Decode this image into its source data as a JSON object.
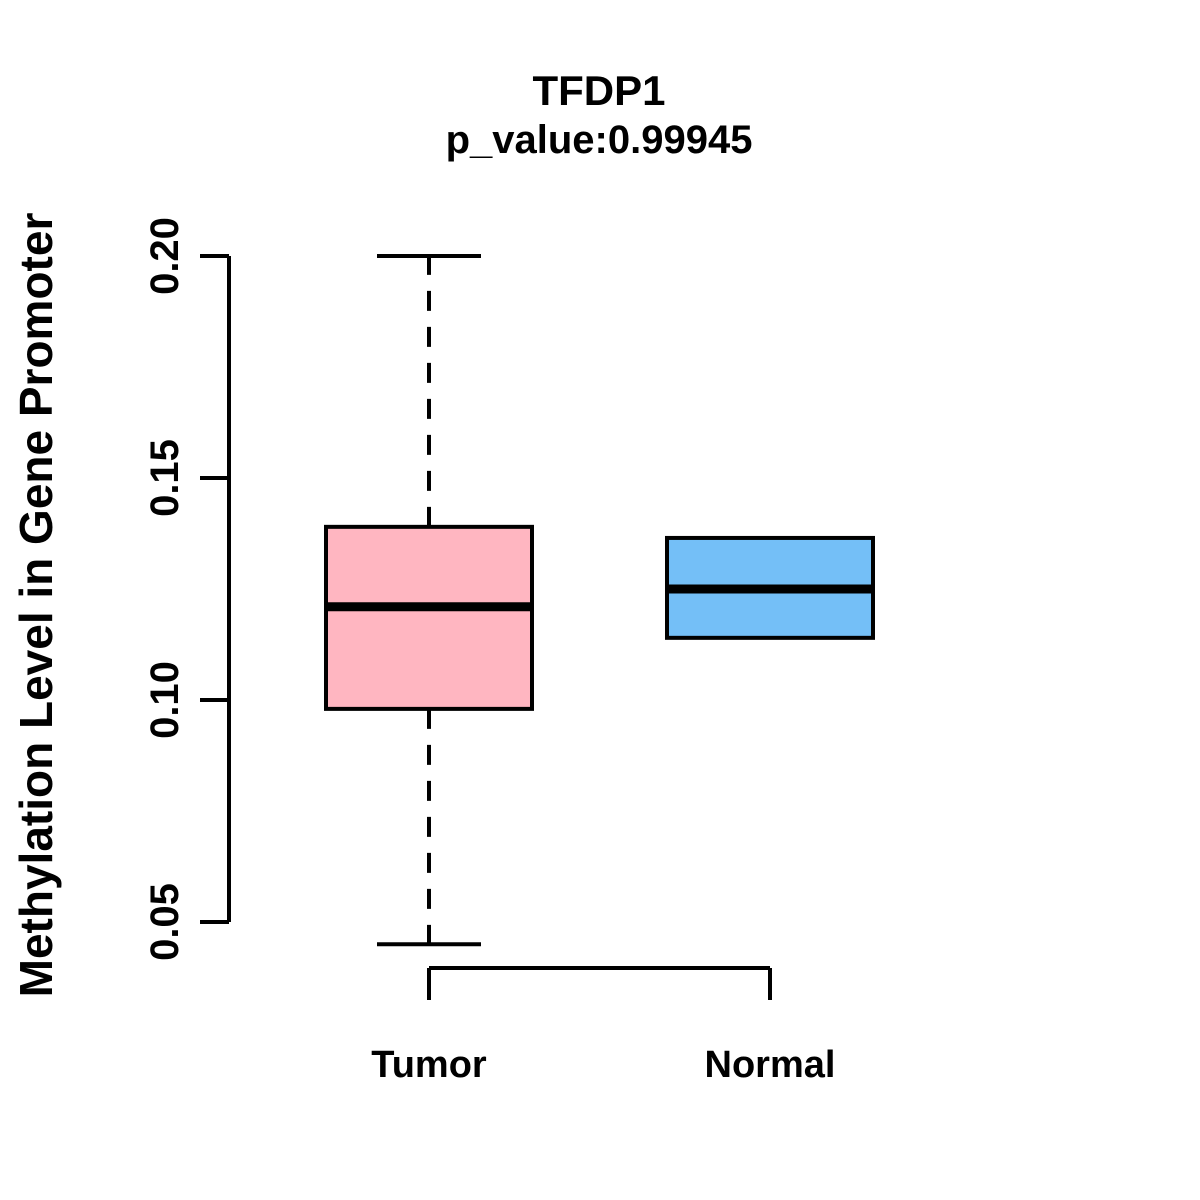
{
  "figure": {
    "background": "#FFFFFF",
    "text_color": "#000000"
  },
  "chart_data": {
    "type": "boxplot",
    "title": "TFDP1",
    "subtitle": "p_value:0.99945",
    "ylabel": "Methylation Level in Gene Promoter",
    "xlabel": "",
    "categories": [
      "Tumor",
      "Normal"
    ],
    "y_ticks": [
      0.05,
      0.1,
      0.15,
      0.2
    ],
    "y_tick_labels": [
      "0.05",
      "0.10",
      "0.15",
      "0.20"
    ],
    "ylim": [
      0.04,
      0.205
    ],
    "grid": false,
    "legend": "none",
    "series": [
      {
        "name": "Tumor",
        "fill_color": "#FFB6C1",
        "border_color": "#000000",
        "whisker_low": 0.045,
        "q1": 0.098,
        "median": 0.121,
        "q3": 0.139,
        "whisker_high": 0.2,
        "whisker_style": "dashed"
      },
      {
        "name": "Normal",
        "fill_color": "#74BFF7",
        "border_color": "#000000",
        "whisker_low": 0.114,
        "q1": 0.114,
        "median": 0.125,
        "q3": 0.1365,
        "whisker_high": 0.1365,
        "whisker_style": "dashed"
      }
    ]
  }
}
